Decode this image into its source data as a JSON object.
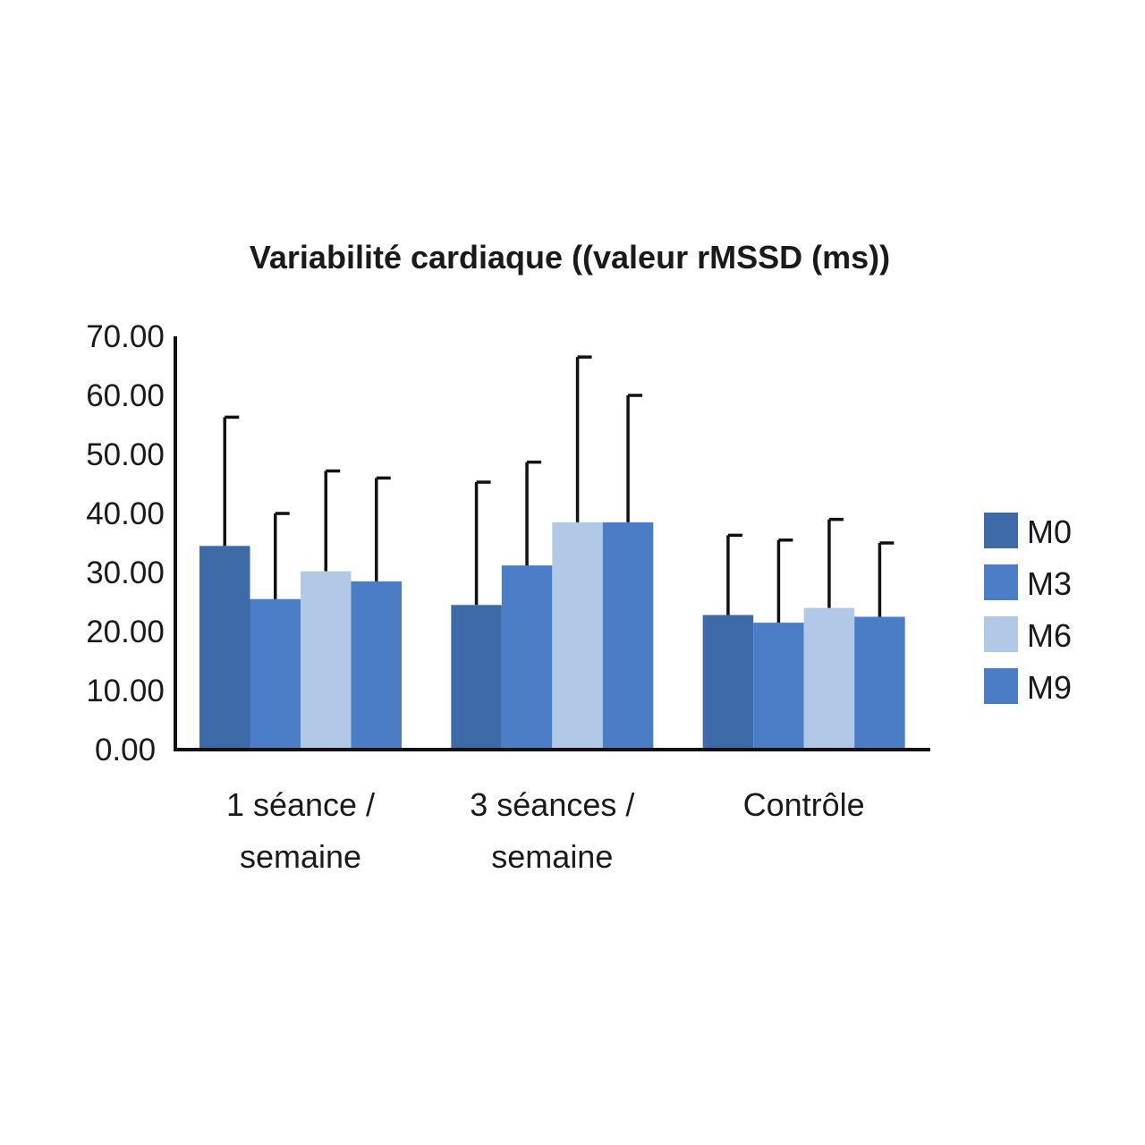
{
  "chart_data": {
    "type": "bar",
    "title": "Variabilité cardiaque ((valeur rMSSD (ms))",
    "xlabel": "",
    "ylabel": "",
    "ylim": [
      0,
      70
    ],
    "yticks": [
      "0.00",
      "10.00",
      "20.00",
      "30.00",
      "40.00",
      "50.00",
      "60.00",
      "70.00"
    ],
    "grid": false,
    "legend_position": "right",
    "categories": [
      [
        "1 séance /",
        "semaine"
      ],
      [
        "3 séances /",
        "semaine"
      ],
      [
        "Contrôle"
      ]
    ],
    "series": [
      {
        "name": "M0",
        "color": "#3f6aa8",
        "values": [
          34.5,
          24.5,
          22.8
        ],
        "errors": [
          21.8,
          20.8,
          13.5
        ]
      },
      {
        "name": "M3",
        "color": "#4c7ec7",
        "values": [
          25.5,
          31.2,
          21.5
        ],
        "errors": [
          14.5,
          17.5,
          14.0
        ]
      },
      {
        "name": "M6",
        "color": "#b1c8e6",
        "values": [
          30.2,
          38.5,
          24.0
        ],
        "errors": [
          17.0,
          28.0,
          15.0
        ]
      },
      {
        "name": "M9",
        "color": "#4a7dc6",
        "values": [
          28.5,
          38.5,
          22.5
        ],
        "errors": [
          17.5,
          21.5,
          12.5
        ]
      }
    ]
  }
}
